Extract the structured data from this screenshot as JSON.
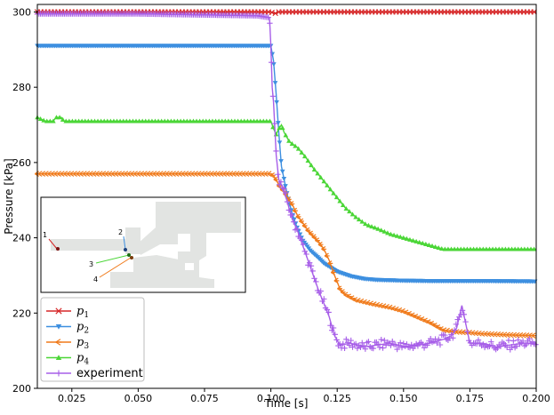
{
  "chart_data": {
    "type": "line",
    "xlabel": "Time [s]",
    "ylabel": "Pressure [kPa]",
    "xlim": [
      0.012,
      0.2
    ],
    "ylim": [
      200,
      302
    ],
    "x_ticks": [
      0.025,
      0.05,
      0.075,
      0.1,
      0.125,
      0.15,
      0.175,
      0.2
    ],
    "x_tick_labels": [
      "0.025",
      "0.050",
      "0.075",
      "0.100",
      "0.125",
      "0.150",
      "0.175",
      "0.200"
    ],
    "y_ticks": [
      200,
      220,
      240,
      260,
      280,
      300
    ],
    "y_tick_labels": [
      "200",
      "220",
      "240",
      "260",
      "280",
      "300"
    ],
    "legend_position": "bottom-left",
    "series": [
      {
        "name": "p1",
        "legend_main": "p",
        "legend_sub": "1",
        "color": "#d62728",
        "marker": "x",
        "points": [
          [
            0.012,
            300
          ],
          [
            0.05,
            300
          ],
          [
            0.1,
            300
          ],
          [
            0.1015,
            299.6
          ],
          [
            0.103,
            300
          ],
          [
            0.15,
            300
          ],
          [
            0.2,
            300
          ]
        ]
      },
      {
        "name": "p2",
        "legend_main": "p",
        "legend_sub": "2",
        "color": "#3d8fe0",
        "marker": "triangle-down",
        "points": [
          [
            0.012,
            291
          ],
          [
            0.05,
            291
          ],
          [
            0.1,
            291
          ],
          [
            0.101,
            287
          ],
          [
            0.102,
            278
          ],
          [
            0.103,
            268
          ],
          [
            0.104,
            259
          ],
          [
            0.106,
            252
          ],
          [
            0.108,
            246.5
          ],
          [
            0.11,
            242.5
          ],
          [
            0.112,
            239.3
          ],
          [
            0.115,
            236.5
          ],
          [
            0.118,
            234.6
          ],
          [
            0.12,
            233.2
          ],
          [
            0.125,
            231
          ],
          [
            0.13,
            229.8
          ],
          [
            0.135,
            229.1
          ],
          [
            0.14,
            228.8
          ],
          [
            0.15,
            228.6
          ],
          [
            0.16,
            228.5
          ],
          [
            0.18,
            228.5
          ],
          [
            0.2,
            228.4
          ]
        ]
      },
      {
        "name": "p3",
        "legend_main": "p",
        "legend_sub": "3",
        "color": "#f07a1a",
        "marker": "tri-left",
        "points": [
          [
            0.012,
            257
          ],
          [
            0.05,
            257
          ],
          [
            0.1,
            257
          ],
          [
            0.101,
            256.5
          ],
          [
            0.102,
            255.5
          ],
          [
            0.103,
            254
          ],
          [
            0.104,
            253
          ],
          [
            0.105,
            252.5
          ],
          [
            0.106,
            251
          ],
          [
            0.108,
            249
          ],
          [
            0.11,
            246
          ],
          [
            0.112,
            244
          ],
          [
            0.114,
            242
          ],
          [
            0.116,
            240.5
          ],
          [
            0.118,
            239
          ],
          [
            0.12,
            237
          ],
          [
            0.122,
            234
          ],
          [
            0.124,
            230
          ],
          [
            0.126,
            226.5
          ],
          [
            0.128,
            225
          ],
          [
            0.132,
            223.5
          ],
          [
            0.138,
            222.5
          ],
          [
            0.145,
            221.5
          ],
          [
            0.15,
            220.5
          ],
          [
            0.155,
            219
          ],
          [
            0.16,
            217.5
          ],
          [
            0.165,
            215.5
          ],
          [
            0.17,
            215
          ],
          [
            0.175,
            214.8
          ],
          [
            0.18,
            214.5
          ],
          [
            0.19,
            214.2
          ],
          [
            0.2,
            214
          ]
        ]
      },
      {
        "name": "p4",
        "legend_main": "p",
        "legend_sub": "4",
        "color": "#4bd637",
        "marker": "triangle-up",
        "points": [
          [
            0.012,
            272
          ],
          [
            0.015,
            271
          ],
          [
            0.018,
            271
          ],
          [
            0.019,
            272
          ],
          [
            0.021,
            272
          ],
          [
            0.022,
            271
          ],
          [
            0.05,
            271
          ],
          [
            0.1,
            271
          ],
          [
            0.101,
            269
          ],
          [
            0.102,
            267.5
          ],
          [
            0.103,
            269
          ],
          [
            0.104,
            270
          ],
          [
            0.105,
            268
          ],
          [
            0.107,
            265.5
          ],
          [
            0.11,
            264
          ],
          [
            0.113,
            261.5
          ],
          [
            0.116,
            258.5
          ],
          [
            0.12,
            255
          ],
          [
            0.124,
            251.5
          ],
          [
            0.128,
            248
          ],
          [
            0.132,
            245.5
          ],
          [
            0.136,
            243.5
          ],
          [
            0.14,
            242.5
          ],
          [
            0.145,
            241
          ],
          [
            0.15,
            240
          ],
          [
            0.155,
            239
          ],
          [
            0.16,
            238
          ],
          [
            0.165,
            237
          ],
          [
            0.17,
            237
          ],
          [
            0.18,
            237
          ],
          [
            0.19,
            237
          ],
          [
            0.2,
            237
          ]
        ]
      },
      {
        "name": "experiment",
        "legend_main": "experiment",
        "legend_sub": "",
        "color": "#a75ee8",
        "marker": "plus",
        "points": [
          [
            0.012,
            299.5
          ],
          [
            0.05,
            299.5
          ],
          [
            0.095,
            299
          ],
          [
            0.0995,
            298.5
          ],
          [
            0.1,
            291
          ],
          [
            0.1005,
            280
          ],
          [
            0.101,
            276
          ],
          [
            0.102,
            262
          ],
          [
            0.103,
            255.5
          ],
          [
            0.104,
            254
          ],
          [
            0.105,
            252
          ],
          [
            0.106,
            250
          ],
          [
            0.108,
            245
          ],
          [
            0.11,
            242
          ],
          [
            0.112,
            238
          ],
          [
            0.114,
            234
          ],
          [
            0.116,
            230
          ],
          [
            0.118,
            226
          ],
          [
            0.12,
            222.5
          ],
          [
            0.122,
            219
          ],
          [
            0.124,
            214
          ],
          [
            0.126,
            211.5
          ],
          [
            0.13,
            212
          ],
          [
            0.135,
            211
          ],
          [
            0.14,
            211.5
          ],
          [
            0.145,
            212
          ],
          [
            0.15,
            211
          ],
          [
            0.155,
            211.5
          ],
          [
            0.16,
            212
          ],
          [
            0.165,
            213
          ],
          [
            0.168,
            214
          ],
          [
            0.17,
            216
          ],
          [
            0.172,
            222
          ],
          [
            0.1735,
            217
          ],
          [
            0.175,
            212
          ],
          [
            0.18,
            212
          ],
          [
            0.185,
            211
          ],
          [
            0.19,
            211.5
          ],
          [
            0.195,
            212
          ],
          [
            0.2,
            212
          ]
        ]
      }
    ],
    "inset": {
      "labels": [
        "1",
        "2",
        "3",
        "4"
      ],
      "leader_colors": [
        "#d62728",
        "#3d8fe0",
        "#4bd637",
        "#f07a1a"
      ]
    }
  }
}
